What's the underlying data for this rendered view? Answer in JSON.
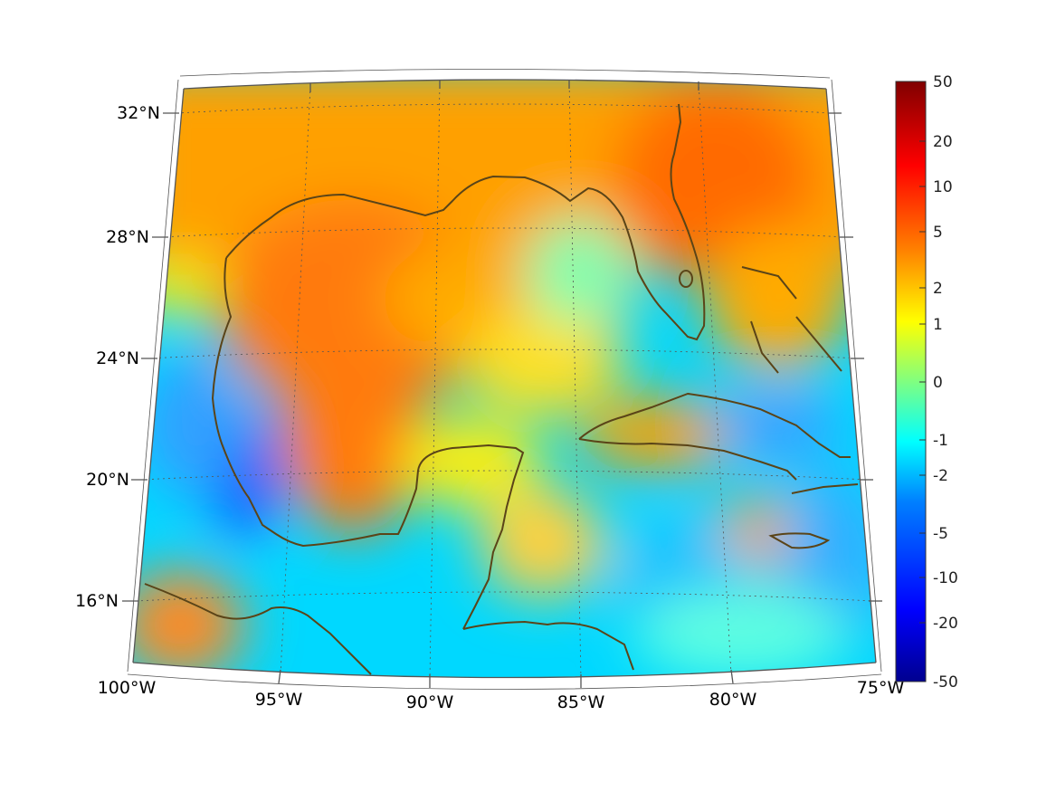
{
  "map": {
    "region": "Gulf of Mexico and Caribbean",
    "lon_range": [
      -100,
      -75
    ],
    "lat_range": [
      14,
      33
    ],
    "coastline_color": "#5a4418",
    "graticule_color": "#555555"
  },
  "lat_labels": [
    "32°N",
    "28°N",
    "24°N",
    "20°N",
    "16°N"
  ],
  "lon_labels": [
    "100°W",
    "95°W",
    "90°W",
    "85°W",
    "80°W",
    "75°W"
  ],
  "colorbar": {
    "colormap": "jet",
    "scale": "nonlinear (symmetric log-like)",
    "ticks": [
      "50",
      "20",
      "10",
      "5",
      "2",
      "1",
      "0",
      "-1",
      "-2",
      "-5",
      "-10",
      "-20",
      "-50"
    ],
    "max": 50,
    "min": -50
  }
}
